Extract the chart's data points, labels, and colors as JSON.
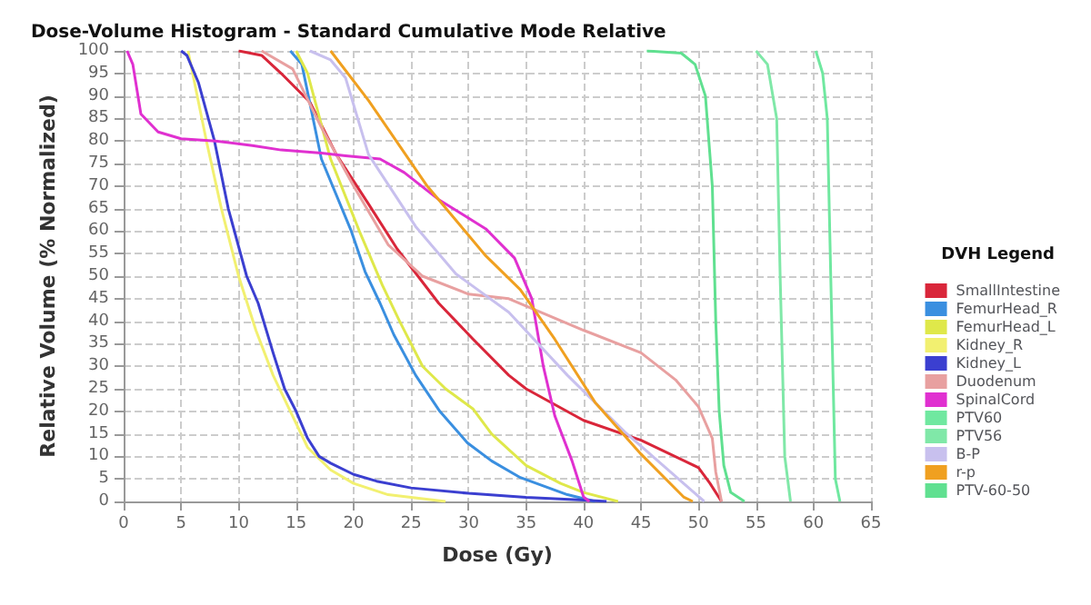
{
  "chart_data": {
    "type": "line",
    "title": "Dose-Volume Histogram - Standard Cumulative Mode Relative",
    "xlabel": "Dose (Gy)",
    "ylabel": "Relative Volume (% Normalized)",
    "legend_title": "DVH Legend",
    "xlim": [
      0,
      65
    ],
    "xticks": [
      0,
      5,
      10,
      15,
      20,
      25,
      30,
      35,
      40,
      45,
      50,
      55,
      60,
      65
    ],
    "ylim": [
      0,
      100
    ],
    "yticks": [
      0,
      5,
      10,
      15,
      20,
      25,
      30,
      35,
      40,
      45,
      50,
      55,
      60,
      65,
      70,
      75,
      80,
      85,
      90,
      95,
      100
    ],
    "grid": true,
    "legend": "right",
    "marker": "none",
    "line_style": "solid",
    "series": [
      {
        "name": "SmallIntestine",
        "color": "#d9263a",
        "x": [
          10,
          12,
          13.7,
          16.2,
          18.5,
          21.3,
          23.8,
          27.4,
          30.4,
          33.5,
          35,
          40,
          45,
          50,
          51,
          52
        ],
        "values": [
          100,
          99,
          95,
          88.6,
          77,
          66,
          56,
          44,
          36,
          28,
          25,
          18,
          13.6,
          7.5,
          4,
          0
        ]
      },
      {
        "name": "FemurHead_R",
        "color": "#3a8fe0",
        "x": [
          14.5,
          15.5,
          17.2,
          19.8,
          21,
          22.3,
          23.5,
          25.4,
          27.5,
          29.9,
          32,
          34.5,
          38.6,
          41
        ],
        "values": [
          100,
          97,
          76,
          60,
          51,
          44,
          37,
          28,
          20,
          13,
          9,
          5.3,
          1.5,
          0
        ]
      },
      {
        "name": "FemurHead_L",
        "color": "#dfe84a",
        "x": [
          15,
          16,
          18,
          20.5,
          22.5,
          24,
          26,
          28,
          30.4,
          32,
          35,
          38,
          40,
          43
        ],
        "values": [
          100,
          95,
          76,
          60,
          48,
          40,
          30,
          25,
          20.5,
          15,
          8,
          4,
          2,
          0
        ]
      },
      {
        "name": "Kidney_R",
        "color": "#f2f070",
        "x": [
          5.6,
          7.2,
          8.5,
          10,
          11.5,
          13,
          14.5,
          16,
          18,
          20,
          23,
          28
        ],
        "values": [
          100,
          80,
          65,
          50,
          38,
          28,
          20,
          12,
          7,
          4,
          1.5,
          0
        ]
      },
      {
        "name": "Kidney_L",
        "color": "#3b3fd0",
        "x": [
          5,
          5.5,
          6.5,
          7.9,
          9.1,
          10.7,
          11.7,
          13,
          14,
          15,
          16,
          17,
          18,
          20,
          22,
          25,
          30,
          35,
          40,
          42
        ],
        "values": [
          100,
          99,
          93,
          80,
          65,
          50,
          44,
          33,
          25,
          20,
          14,
          10,
          8.5,
          6,
          4.5,
          3,
          1.8,
          0.9,
          0.3,
          0
        ]
      },
      {
        "name": "Duodenum",
        "color": "#e8a0a0",
        "x": [
          12,
          14.7,
          17.2,
          20,
          23,
          26,
          30,
          33.5,
          40,
          45,
          48,
          50,
          51.2,
          51.5,
          52
        ],
        "values": [
          100,
          96,
          83,
          70,
          57,
          50,
          46,
          45,
          38,
          33,
          27,
          21,
          14,
          6.5,
          0
        ]
      },
      {
        "name": "SpinalCord",
        "color": "#e030d0",
        "x": [
          0.3,
          0.8,
          1.5,
          3,
          5,
          8,
          11.2,
          13.7,
          17.2,
          19.3,
          22.3,
          24.4,
          27.4,
          31.5,
          34,
          35.5,
          36.5,
          37.5,
          39,
          40,
          40.5
        ],
        "values": [
          100,
          97,
          86,
          82,
          80.5,
          80,
          79,
          78,
          77.3,
          76.7,
          76,
          73,
          67,
          60.5,
          54,
          45,
          30,
          19,
          9,
          1,
          0
        ]
      },
      {
        "name": "PTV60",
        "color": "#70e8a0",
        "x": [
          60.2,
          60.8,
          61.2,
          61.5,
          61.9,
          62.3
        ],
        "values": [
          100,
          95,
          85,
          50,
          5,
          0
        ]
      },
      {
        "name": "PTV56",
        "color": "#80e8a8",
        "x": [
          55,
          56,
          56.8,
          57.1,
          57.5,
          58
        ],
        "values": [
          100,
          97,
          85,
          50,
          10,
          0
        ]
      },
      {
        "name": "B-P",
        "color": "#c8c0ee",
        "x": [
          16.2,
          18,
          19.3,
          21.3,
          25.4,
          28.9,
          33.5,
          38.6,
          43.6,
          48.7,
          50.5
        ],
        "values": [
          100,
          98,
          94,
          77,
          61,
          50.5,
          42,
          28,
          15.4,
          4,
          0
        ]
      },
      {
        "name": "r-p",
        "color": "#f0a020",
        "x": [
          18,
          21.3,
          26.4,
          31.5,
          34.5,
          37.5,
          41,
          45,
          48.7,
          49.5
        ],
        "values": [
          100,
          89,
          70,
          54.5,
          47,
          36,
          22,
          10.5,
          1,
          0
        ]
      },
      {
        "name": "PTV-60-50",
        "color": "#60e090",
        "x": [
          45.5,
          48.5,
          49.7,
          50.6,
          51.2,
          51.5,
          51.8,
          52.2,
          52.8,
          54
        ],
        "values": [
          100,
          99.5,
          97,
          90,
          70,
          40,
          20,
          8,
          2,
          0
        ]
      }
    ]
  }
}
